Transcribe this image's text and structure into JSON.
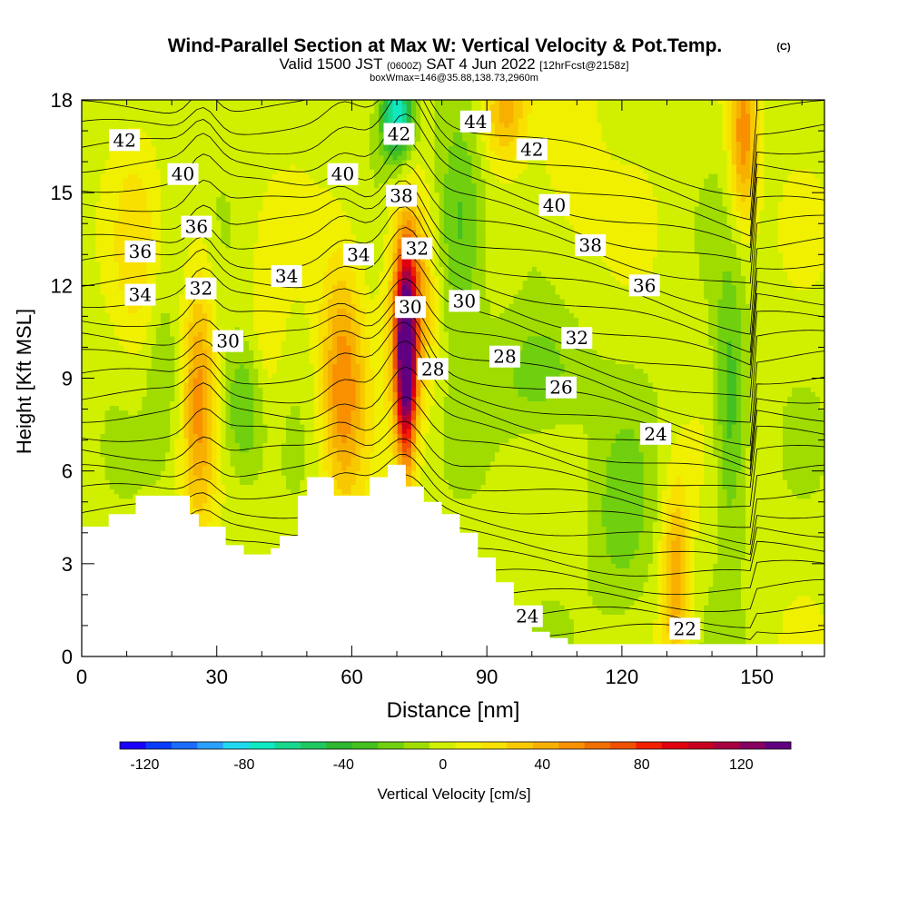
{
  "title": {
    "main": "Wind-Parallel Section at Max W: Vertical Velocity & Pot.Temp.",
    "copyright": "(C)",
    "valid_prefix": "Valid 1500 JST",
    "valid_utc": "(0600Z)",
    "valid_date": "SAT 4 Jun 2022",
    "valid_fcst": "[12hrFcst@2158z]",
    "box_info": "boxWmax=146@35.88,138.73,2960m"
  },
  "chart_data": {
    "type": "heatmap",
    "xlabel": "Distance [nm]",
    "ylabel": "Height [Kft MSL]",
    "xlim": [
      0,
      165
    ],
    "ylim": [
      0,
      18
    ],
    "x_ticks": [
      0,
      30,
      60,
      90,
      120,
      150
    ],
    "y_ticks": [
      0,
      3,
      6,
      9,
      12,
      15,
      18
    ],
    "colorbar": {
      "label": "Vertical Velocity [cm/s]",
      "range": [
        -130,
        140
      ],
      "ticks": [
        -120,
        -80,
        -40,
        0,
        40,
        80,
        120
      ],
      "colors": [
        "#1a00ff",
        "#0a3cff",
        "#1a6cff",
        "#2aa0ff",
        "#22d8f0",
        "#10e8c0",
        "#18d890",
        "#20c860",
        "#30b830",
        "#44c020",
        "#70d010",
        "#a0dc00",
        "#d0f000",
        "#f0f000",
        "#f8e000",
        "#f8c800",
        "#f8b000",
        "#f89000",
        "#f07000",
        "#f05000",
        "#f02000",
        "#e00010",
        "#c80020",
        "#a80040",
        "#880060",
        "#600080"
      ]
    },
    "terrain_top_kft": [
      [
        0,
        4.2
      ],
      [
        6,
        4.6
      ],
      [
        12,
        5.2
      ],
      [
        22,
        5.2
      ],
      [
        24,
        4.6
      ],
      [
        26,
        4.2
      ],
      [
        30,
        4.2
      ],
      [
        32,
        3.6
      ],
      [
        36,
        3.3
      ],
      [
        42,
        3.5
      ],
      [
        44,
        3.9
      ],
      [
        48,
        5.2
      ],
      [
        50,
        5.8
      ],
      [
        54,
        5.8
      ],
      [
        56,
        5.2
      ],
      [
        62,
        5.2
      ],
      [
        64,
        5.8
      ],
      [
        68,
        6.2
      ],
      [
        70,
        6.2
      ],
      [
        72,
        5.5
      ],
      [
        76,
        5.0
      ],
      [
        80,
        4.6
      ],
      [
        84,
        4.0
      ],
      [
        88,
        3.2
      ],
      [
        92,
        2.4
      ],
      [
        96,
        1.6
      ],
      [
        100,
        0.8
      ],
      [
        104,
        0.6
      ],
      [
        108,
        0.4
      ],
      [
        165,
        0.4
      ]
    ],
    "w_features": [
      {
        "x": 26,
        "y": 8.5,
        "sx": 2.5,
        "sy": 3.2,
        "w": 45
      },
      {
        "x": 58,
        "y": 8.8,
        "sx": 3.5,
        "sy": 2.8,
        "w": 55
      },
      {
        "x": 72,
        "y": 9.6,
        "sx": 1.5,
        "sy": 2.2,
        "w": 140
      },
      {
        "x": 73,
        "y": 11.5,
        "sx": 3.5,
        "sy": 2.4,
        "w": 60
      },
      {
        "x": 94,
        "y": 17.6,
        "sx": 3.5,
        "sy": 1.2,
        "w": 40
      },
      {
        "x": 132,
        "y": 2.6,
        "sx": 2.2,
        "sy": 2.2,
        "w": 45
      },
      {
        "x": 147,
        "y": 16.8,
        "sx": 2.2,
        "sy": 2.0,
        "w": 55
      },
      {
        "x": 12,
        "y": 13.0,
        "sx": 3.5,
        "sy": 2.5,
        "w": 18
      },
      {
        "x": 41,
        "y": 9.8,
        "sx": 2.8,
        "sy": 2.5,
        "w": 15
      },
      {
        "x": 108,
        "y": 16.0,
        "sx": 5.0,
        "sy": 2.5,
        "w": 15
      },
      {
        "x": 70,
        "y": 17.5,
        "sx": 2.5,
        "sy": 1.0,
        "w": -80
      },
      {
        "x": 84,
        "y": 14.0,
        "sx": 4.0,
        "sy": 2.5,
        "w": -35
      },
      {
        "x": 36,
        "y": 8.0,
        "sx": 3.5,
        "sy": 1.5,
        "w": -30
      },
      {
        "x": 144,
        "y": 8.0,
        "sx": 2.5,
        "sy": 3.0,
        "w": -35
      },
      {
        "x": 120,
        "y": 4.0,
        "sx": 5.0,
        "sy": 2.5,
        "w": -20
      },
      {
        "x": 102,
        "y": 9.0,
        "sx": 7.0,
        "sy": 1.5,
        "w": -25
      },
      {
        "x": 18,
        "y": 9.0,
        "sx": 2.5,
        "sy": 2.0,
        "w": -15
      }
    ],
    "contour_labels": [
      {
        "text": "42",
        "x": 9.5,
        "y": 16.7
      },
      {
        "text": "40",
        "x": 22.5,
        "y": 15.6
      },
      {
        "text": "36",
        "x": 25.5,
        "y": 13.9
      },
      {
        "text": "36",
        "x": 13,
        "y": 13.1
      },
      {
        "text": "34",
        "x": 13,
        "y": 11.7
      },
      {
        "text": "32",
        "x": 26.5,
        "y": 11.9
      },
      {
        "text": "30",
        "x": 32.5,
        "y": 10.2
      },
      {
        "text": "34",
        "x": 45.5,
        "y": 12.3
      },
      {
        "text": "40",
        "x": 58,
        "y": 15.6
      },
      {
        "text": "34",
        "x": 61.5,
        "y": 13.0
      },
      {
        "text": "42",
        "x": 70.5,
        "y": 16.9
      },
      {
        "text": "44",
        "x": 87.5,
        "y": 17.3
      },
      {
        "text": "42",
        "x": 100,
        "y": 16.4
      },
      {
        "text": "38",
        "x": 71,
        "y": 14.9
      },
      {
        "text": "32",
        "x": 74.5,
        "y": 13.2
      },
      {
        "text": "30",
        "x": 73,
        "y": 11.3
      },
      {
        "text": "30",
        "x": 85,
        "y": 11.5
      },
      {
        "text": "28",
        "x": 78,
        "y": 9.3
      },
      {
        "text": "28",
        "x": 94,
        "y": 9.7
      },
      {
        "text": "40",
        "x": 105,
        "y": 14.6
      },
      {
        "text": "38",
        "x": 113,
        "y": 13.3
      },
      {
        "text": "36",
        "x": 125,
        "y": 12.0
      },
      {
        "text": "32",
        "x": 110,
        "y": 10.3
      },
      {
        "text": "26",
        "x": 106.5,
        "y": 8.7
      },
      {
        "text": "24",
        "x": 127.5,
        "y": 7.2
      },
      {
        "text": "24",
        "x": 99,
        "y": 1.3
      },
      {
        "text": "22",
        "x": 134,
        "y": 0.9
      }
    ]
  }
}
